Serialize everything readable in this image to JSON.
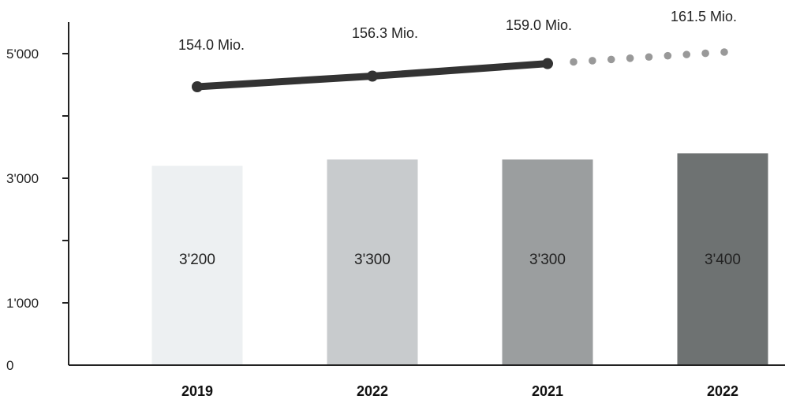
{
  "chart_data": {
    "type": "bar",
    "categories": [
      "2019",
      "2022",
      "2021",
      "2022"
    ],
    "values": [
      3200,
      3300,
      3300,
      3400
    ],
    "value_labels": [
      "3'200",
      "3'300",
      "3'300",
      "3'400"
    ],
    "bar_colors": [
      "#edf0f2",
      "#c8cbcd",
      "#9b9e9f",
      "#6e7272"
    ],
    "ylim": [
      0,
      6000
    ],
    "yticks": [
      0,
      1000,
      2000,
      3000,
      4000,
      5000
    ],
    "ytick_labels": [
      "0",
      "1'000",
      "",
      "3'000",
      "",
      "5'000"
    ],
    "overlay_line": {
      "values": [
        154.0,
        156.3,
        159.0,
        161.5
      ],
      "labels": [
        "154.0 Mio.",
        "156.3 Mio.",
        "159.0 Mio.",
        "161.5 Mio."
      ],
      "solid_points": 3,
      "dotted_last_segment": true,
      "color_solid": "#333333",
      "color_dotted": "#999999"
    },
    "grid": false,
    "legend": "none",
    "title": "",
    "xlabel": "",
    "ylabel": ""
  }
}
